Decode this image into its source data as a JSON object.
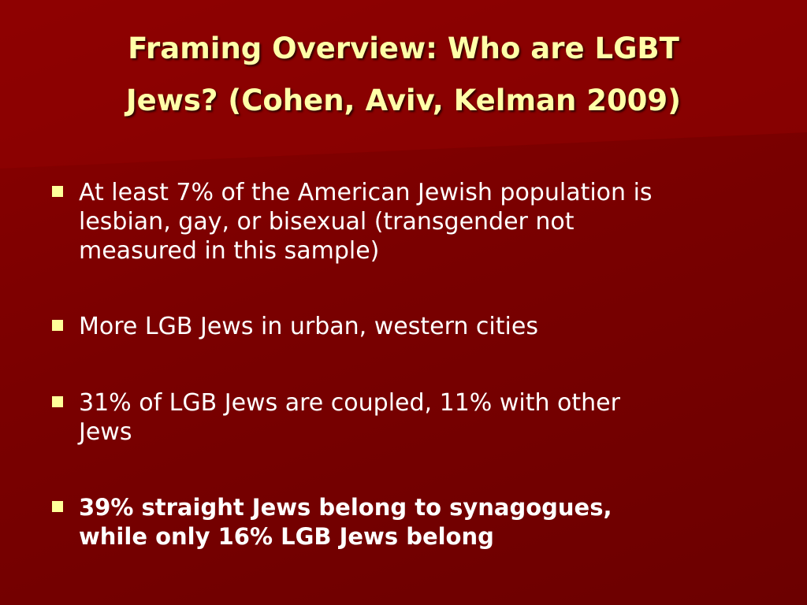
{
  "title": {
    "lines": [
      "Framing Overview: Who are LGBT",
      "Jews? (Cohen, Aviv, Kelman 2009)"
    ]
  },
  "bullets": [
    {
      "lines": [
        "At least 7% of the American Jewish population is",
        "lesbian,  gay, or bisexual  (transgender not",
        "measured in this sample)"
      ],
      "bold": false
    },
    {
      "lines": [
        "More LGB Jews in urban, western cities"
      ],
      "bold": false
    },
    {
      "lines": [
        "31% of LGB Jews are coupled, 11% with other",
        "Jews"
      ],
      "bold": false
    },
    {
      "lines": [
        "39% straight Jews belong to synagogues,",
        "while only 16% LGB Jews belong"
      ],
      "bold": true
    }
  ]
}
